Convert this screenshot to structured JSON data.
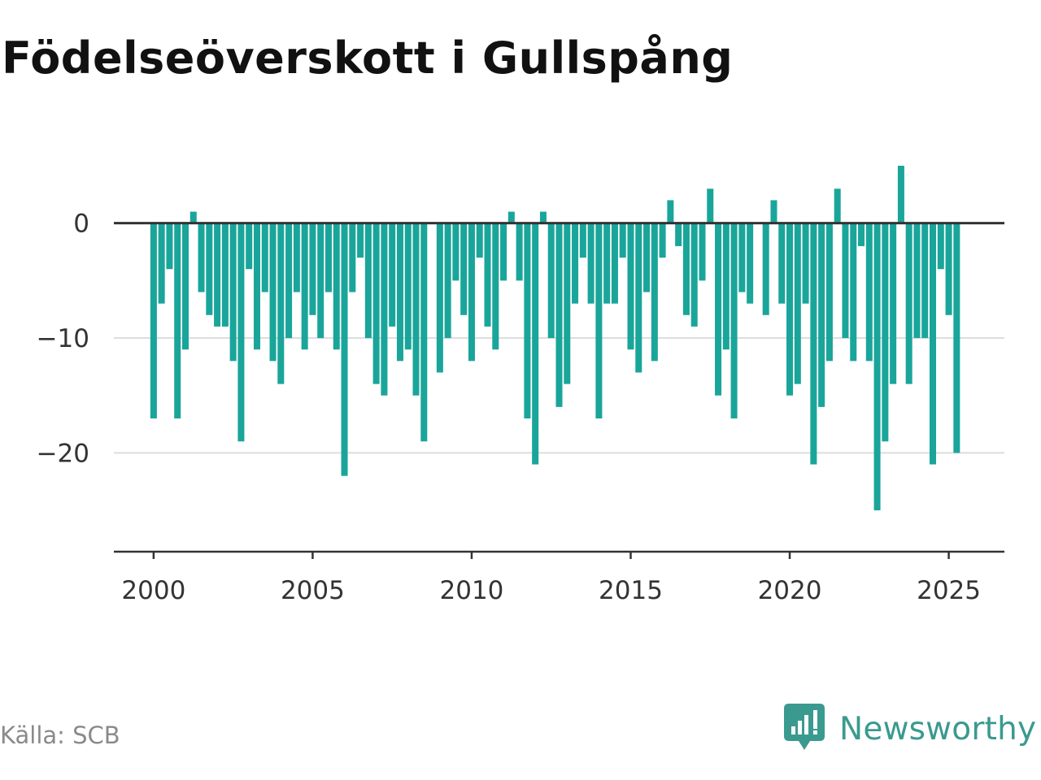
{
  "header": {
    "title": "Födelseöverskott i Gullspång"
  },
  "footer": {
    "source": "Källa: SCB",
    "brand": "Newsworthy"
  },
  "colors": {
    "bar": "#1aa59a",
    "zero_line": "#333333",
    "grid": "#dddddd",
    "axis": "#333333",
    "brand": "#3a9a8f"
  },
  "icons": {
    "brand_logo": "bar-chart-speech-bubble-icon"
  },
  "chart_data": {
    "type": "bar",
    "title": "Födelseöverskott i Gullspång",
    "xlabel": "",
    "ylabel": "",
    "grid": true,
    "x_ticks": [
      2000,
      2005,
      2010,
      2015,
      2020,
      2025
    ],
    "y_ticks": [
      0,
      -10,
      -20
    ],
    "y_tick_labels": [
      "0",
      "−10",
      "−20"
    ],
    "xlim": [
      1998.75,
      2026.75
    ],
    "ylim": [
      -28.6,
      5
    ],
    "period": "quarterly",
    "start": "2000-Q1",
    "values": [
      -17,
      -7,
      -4,
      -17,
      -11,
      1,
      -6,
      -8,
      -9,
      -9,
      -12,
      -19,
      -4,
      -11,
      -6,
      -12,
      -14,
      -10,
      -6,
      -11,
      -8,
      -10,
      -6,
      -11,
      -22,
      -6,
      -3,
      -10,
      -14,
      -15,
      -9,
      -12,
      -11,
      -15,
      -19,
      0,
      -13,
      -10,
      -5,
      -8,
      -12,
      -3,
      -9,
      -11,
      -5,
      1,
      -5,
      -17,
      -21,
      1,
      -10,
      -16,
      -14,
      -7,
      -3,
      -7,
      -17,
      -7,
      -7,
      -3,
      -11,
      -13,
      -6,
      -12,
      -3,
      2,
      -2,
      -8,
      -9,
      -5,
      3,
      -15,
      -11,
      -17,
      -6,
      -7,
      0,
      -8,
      2,
      -7,
      -15,
      -14,
      -7,
      -21,
      -16,
      -12,
      3,
      -10,
      -12,
      -2,
      -12,
      -25,
      -19,
      -14,
      5,
      -14,
      -10,
      -10,
      -21,
      -4,
      -8,
      -20
    ]
  }
}
